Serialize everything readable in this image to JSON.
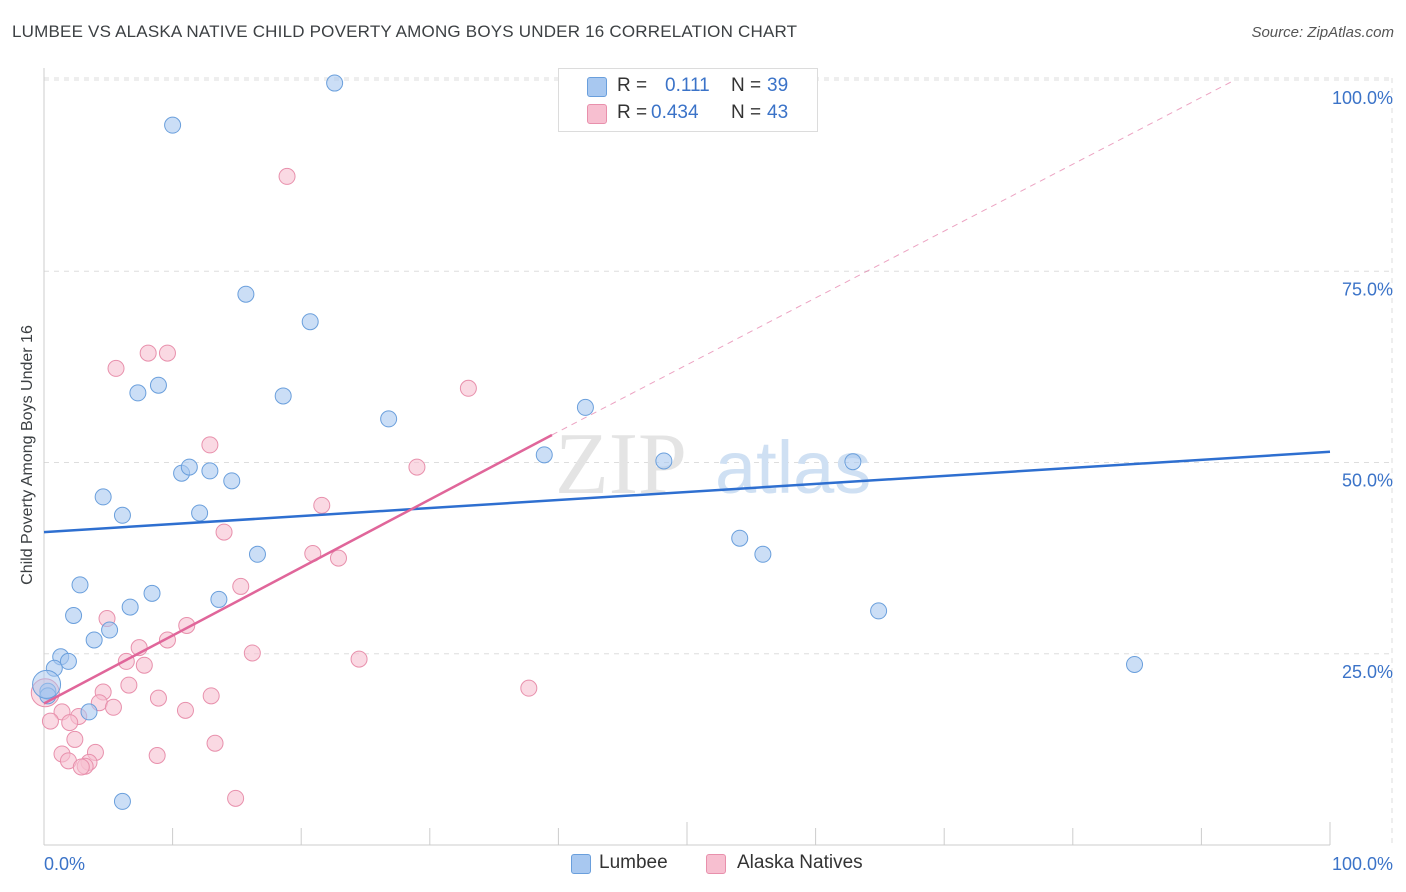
{
  "header": {
    "title": "LUMBEE VS ALASKA NATIVE CHILD POVERTY AMONG BOYS UNDER 16 CORRELATION CHART",
    "source": "Source: ZipAtlas.com"
  },
  "colors": {
    "lumbee_fill": "#a8c8f0",
    "lumbee_stroke": "#6a9fdc",
    "lumbee_line": "#2e6fd0",
    "alaska_fill": "#f7bfd0",
    "alaska_stroke": "#e890ac",
    "alaska_line": "#e0669a",
    "tick_label": "#3b73c8",
    "grid": "#dddddd"
  },
  "legend": {
    "rows": [
      {
        "r_label": "R =",
        "r_value": "0.111",
        "n_label": "N =",
        "n_value": "39"
      },
      {
        "r_label": "R =",
        "r_value": "0.434",
        "n_label": "N =",
        "n_value": "43"
      }
    ]
  },
  "bottom_legend": {
    "items": [
      {
        "label": "Lumbee"
      },
      {
        "label": "Alaska Natives"
      }
    ]
  },
  "watermark": {
    "zip": "ZIP",
    "atlas": "atlas"
  },
  "chart_data": {
    "type": "scatter",
    "title": "LUMBEE VS ALASKA NATIVE CHILD POVERTY AMONG BOYS UNDER 16 CORRELATION CHART",
    "xlabel": "",
    "ylabel": "Child Poverty Among Boys Under 16",
    "xlim": [
      0,
      100
    ],
    "ylim": [
      0,
      102
    ],
    "x_tick_labels": [
      "0.0%",
      "100.0%"
    ],
    "y_ticks": [
      25,
      50,
      75,
      100
    ],
    "y_tick_labels": [
      "25.0%",
      "50.0%",
      "75.0%",
      "100.0%"
    ],
    "grid": true,
    "legend_position": "top-center",
    "series": [
      {
        "name": "Lumbee",
        "R": 0.111,
        "N": 39,
        "trend": {
          "x0": 0,
          "y0": 40.9,
          "x1": 100,
          "y1": 51.4
        },
        "points": [
          [
            22.6,
            99.6
          ],
          [
            10,
            94.1
          ],
          [
            15.7,
            72
          ],
          [
            20.7,
            68.4
          ],
          [
            8.9,
            60.1
          ],
          [
            7.3,
            59.1
          ],
          [
            18.6,
            58.7
          ],
          [
            26.8,
            55.7
          ],
          [
            42.1,
            57.2
          ],
          [
            38.9,
            51
          ],
          [
            48.2,
            50.2
          ],
          [
            62.9,
            50.1
          ],
          [
            10.7,
            48.6
          ],
          [
            11.3,
            49.4
          ],
          [
            12.9,
            48.9
          ],
          [
            14.6,
            47.6
          ],
          [
            4.6,
            45.5
          ],
          [
            6.1,
            43.1
          ],
          [
            12.1,
            43.4
          ],
          [
            16.6,
            38
          ],
          [
            54.1,
            40.1
          ],
          [
            55.9,
            38
          ],
          [
            2.8,
            34
          ],
          [
            8.4,
            32.9
          ],
          [
            13.6,
            32.1
          ],
          [
            6.7,
            31.1
          ],
          [
            2.3,
            30
          ],
          [
            64.9,
            30.6
          ],
          [
            5.1,
            28.1
          ],
          [
            3.9,
            26.8
          ],
          [
            1.3,
            24.6
          ],
          [
            1.9,
            24
          ],
          [
            0.8,
            23.1
          ],
          [
            84.8,
            23.6
          ],
          [
            0.3,
            20.1
          ],
          [
            0.3,
            19.5
          ],
          [
            3.5,
            17.4
          ],
          [
            6.1,
            5.7
          ],
          [
            0.2,
            21
          ]
        ]
      },
      {
        "name": "Alaska Natives",
        "R": 0.434,
        "N": 43,
        "trend": {
          "x0": 0,
          "y0": 18.5,
          "x1": 39.5,
          "y1": 53.6
        },
        "dashed_extension": {
          "x0": 39.5,
          "y0": 53.6,
          "x1": 92.6,
          "y1": 100
        },
        "points": [
          [
            18.9,
            87.4
          ],
          [
            8.1,
            64.3
          ],
          [
            9.6,
            64.3
          ],
          [
            5.6,
            62.3
          ],
          [
            33,
            59.7
          ],
          [
            12.9,
            52.3
          ],
          [
            29,
            49.4
          ],
          [
            21.6,
            44.4
          ],
          [
            14,
            40.9
          ],
          [
            20.9,
            38.1
          ],
          [
            22.9,
            37.5
          ],
          [
            15.3,
            33.8
          ],
          [
            4.9,
            29.6
          ],
          [
            11.1,
            28.7
          ],
          [
            7.4,
            25.8
          ],
          [
            9.6,
            26.8
          ],
          [
            16.2,
            25.1
          ],
          [
            24.5,
            24.3
          ],
          [
            6.4,
            24
          ],
          [
            7.8,
            23.5
          ],
          [
            37.7,
            20.5
          ],
          [
            6.6,
            20.9
          ],
          [
            4.6,
            20
          ],
          [
            8.9,
            19.2
          ],
          [
            13,
            19.5
          ],
          [
            4.3,
            18.6
          ],
          [
            5.4,
            18
          ],
          [
            11,
            17.6
          ],
          [
            1.4,
            17.4
          ],
          [
            2.7,
            16.8
          ],
          [
            2,
            16
          ],
          [
            0.5,
            16.2
          ],
          [
            2.4,
            13.8
          ],
          [
            13.3,
            13.3
          ],
          [
            4,
            12.1
          ],
          [
            1.4,
            11.9
          ],
          [
            8.8,
            11.7
          ],
          [
            1.9,
            11
          ],
          [
            3.5,
            10.8
          ],
          [
            3.2,
            10.3
          ],
          [
            2.9,
            10.2
          ],
          [
            14.9,
            6.1
          ],
          [
            0.1,
            19.9
          ]
        ]
      }
    ]
  }
}
